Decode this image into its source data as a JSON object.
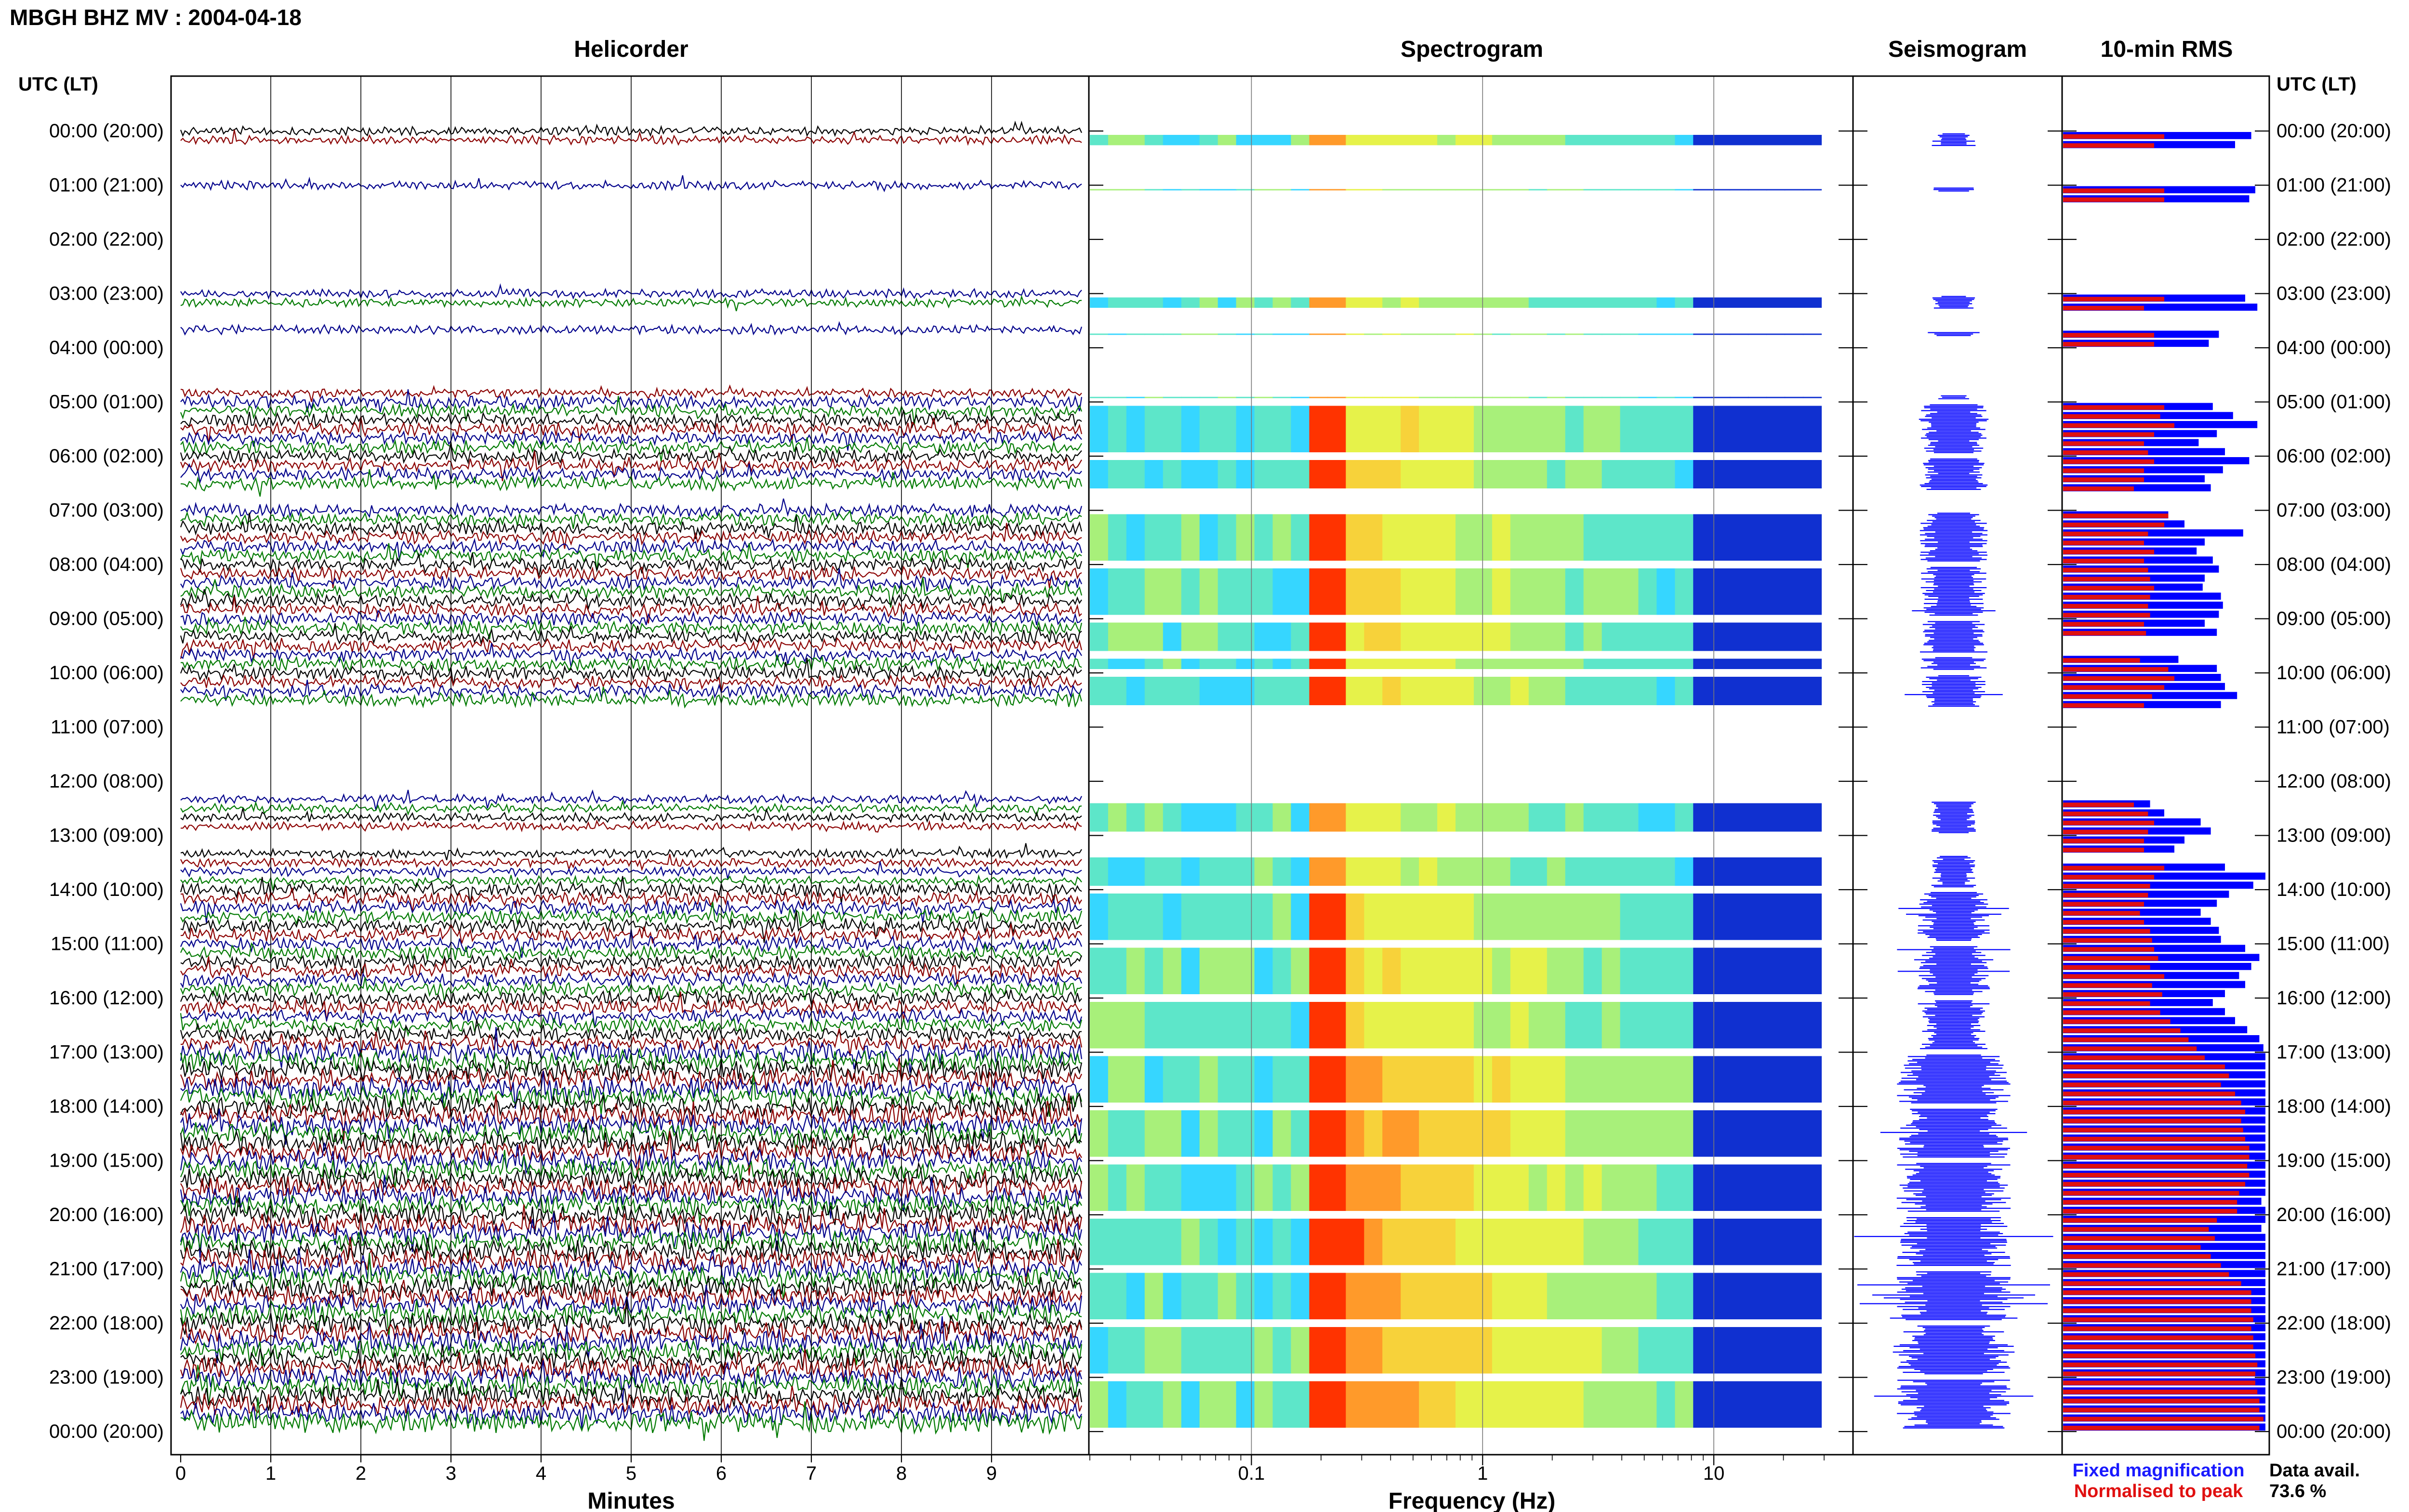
{
  "station_title": "MBGH BHZ MV : 2004-04-18",
  "panels": {
    "helicorder": "Helicorder",
    "spectrogram": "Spectrogram",
    "seismogram": "Seismogram",
    "rms": "10-min RMS"
  },
  "time_axis_title": "UTC (LT)",
  "time_labels": [
    "00:00 (20:00)",
    "01:00 (21:00)",
    "02:00 (22:00)",
    "03:00 (23:00)",
    "04:00 (00:00)",
    "05:00 (01:00)",
    "06:00 (02:00)",
    "07:00 (03:00)",
    "08:00 (04:00)",
    "09:00 (05:00)",
    "10:00 (06:00)",
    "11:00 (07:00)",
    "12:00 (08:00)",
    "13:00 (09:00)",
    "14:00 (10:00)",
    "15:00 (11:00)",
    "16:00 (12:00)",
    "17:00 (13:00)",
    "18:00 (14:00)",
    "19:00 (15:00)",
    "20:00 (16:00)",
    "21:00 (17:00)",
    "22:00 (18:00)",
    "23:00 (19:00)",
    "00:00 (20:00)"
  ],
  "minutes_ticks": [
    "0",
    "1",
    "2",
    "3",
    "4",
    "5",
    "6",
    "7",
    "8",
    "9"
  ],
  "minutes_label": "Minutes",
  "freq_ticks": [
    "0.1",
    "1",
    "10"
  ],
  "freq_label": "Frequency (Hz)",
  "legend": {
    "fixed": "Fixed magnification",
    "normalised": "Normalised to peak",
    "fixed_color": "#1a1aff",
    "normalised_color": "#e01010"
  },
  "data_avail": {
    "label": "Data avail.",
    "value": "73.6 %"
  },
  "colors": {
    "trace_cycle": [
      "#000000",
      "#8b0000",
      "#00008b",
      "#007a00"
    ],
    "seismogram": "#0000ff",
    "rms_fixed": "#0000ff",
    "rms_normalised": "#e01010",
    "spectrogram_peak": "#ff3300"
  },
  "chart_data": {
    "type": "heatmap",
    "title": "MBGH BHZ MV : 2004-04-18",
    "xlabel": "Frequency (Hz)",
    "x_scale": "log",
    "xlim": [
      0.02,
      40
    ],
    "ylabel": "UTC (LT)",
    "ylim": [
      "00:00",
      "24:00"
    ],
    "dominant_frequency_hz": 0.2,
    "data_availability_percent": 73.6,
    "hours_with_data": [
      {
        "hour": 0,
        "minutes": [
          [
            0,
            20
          ]
        ]
      },
      {
        "hour": 1,
        "minutes": [
          [
            0,
            10
          ]
        ]
      },
      {
        "hour": 3,
        "minutes": [
          [
            0,
            20
          ]
        ]
      },
      {
        "hour": 3,
        "minutes": [
          [
            40,
            50
          ]
        ]
      },
      {
        "hour": 4,
        "minutes": [
          [
            50,
            60
          ]
        ]
      },
      {
        "hour": 5,
        "minutes": [
          [
            0,
            60
          ]
        ]
      },
      {
        "hour": 6,
        "minutes": [
          [
            0,
            40
          ]
        ]
      },
      {
        "hour": 7,
        "minutes": [
          [
            0,
            60
          ]
        ]
      },
      {
        "hour": 8,
        "minutes": [
          [
            0,
            60
          ]
        ]
      },
      {
        "hour": 9,
        "minutes": [
          [
            0,
            40
          ]
        ]
      },
      {
        "hour": 9,
        "minutes": [
          [
            40,
            60
          ]
        ]
      },
      {
        "hour": 10,
        "minutes": [
          [
            0,
            40
          ]
        ]
      },
      {
        "hour": 12,
        "minutes": [
          [
            20,
            60
          ]
        ]
      },
      {
        "hour": 13,
        "minutes": [
          [
            20,
            60
          ]
        ]
      },
      {
        "hour": 14,
        "minutes": [
          [
            0,
            60
          ]
        ]
      },
      {
        "hour": 15,
        "minutes": [
          [
            0,
            60
          ]
        ]
      },
      {
        "hour": 16,
        "minutes": [
          [
            0,
            60
          ]
        ]
      },
      {
        "hour": 17,
        "minutes": [
          [
            0,
            60
          ]
        ]
      },
      {
        "hour": 18,
        "minutes": [
          [
            0,
            60
          ]
        ]
      },
      {
        "hour": 19,
        "minutes": [
          [
            0,
            60
          ]
        ]
      },
      {
        "hour": 20,
        "minutes": [
          [
            0,
            60
          ]
        ]
      },
      {
        "hour": 21,
        "minutes": [
          [
            0,
            60
          ]
        ]
      },
      {
        "hour": 22,
        "minutes": [
          [
            0,
            60
          ]
        ]
      },
      {
        "hour": 23,
        "minutes": [
          [
            0,
            60
          ]
        ]
      }
    ],
    "rms_10min": [
      {
        "slot": "00:00",
        "fixed": 0.93,
        "normalised": 0.5
      },
      {
        "slot": "00:10",
        "fixed": 0.85,
        "normalised": 0.45
      },
      {
        "slot": "01:00",
        "fixed": 0.95,
        "normalised": 0.5
      },
      {
        "slot": "01:10",
        "fixed": 0.92,
        "normalised": 0.5
      },
      {
        "slot": "03:00",
        "fixed": 0.9,
        "normalised": 0.5
      },
      {
        "slot": "03:10",
        "fixed": 0.96,
        "normalised": 0.4
      },
      {
        "slot": "03:40",
        "fixed": 0.77,
        "normalised": 0.45
      },
      {
        "slot": "03:50",
        "fixed": 0.72,
        "normalised": 0.45
      },
      {
        "slot": "05:00",
        "fixed": 0.74,
        "normalised": 0.5
      },
      {
        "slot": "05:10",
        "fixed": 0.84,
        "normalised": 0.48
      },
      {
        "slot": "05:20",
        "fixed": 0.96,
        "normalised": 0.55
      },
      {
        "slot": "05:30",
        "fixed": 0.76,
        "normalised": 0.45
      },
      {
        "slot": "05:40",
        "fixed": 0.67,
        "normalised": 0.4
      },
      {
        "slot": "05:50",
        "fixed": 0.8,
        "normalised": 0.42
      },
      {
        "slot": "06:00",
        "fixed": 0.92,
        "normalised": 0.45
      },
      {
        "slot": "06:10",
        "fixed": 0.79,
        "normalised": 0.4
      },
      {
        "slot": "06:20",
        "fixed": 0.7,
        "normalised": 0.4
      },
      {
        "slot": "06:30",
        "fixed": 0.73,
        "normalised": 0.35
      },
      {
        "slot": "07:00",
        "fixed": 0.52,
        "normalised": 0.52
      },
      {
        "slot": "07:10",
        "fixed": 0.6,
        "normalised": 0.5
      },
      {
        "slot": "07:20",
        "fixed": 0.89,
        "normalised": 0.42
      },
      {
        "slot": "07:30",
        "fixed": 0.7,
        "normalised": 0.4
      },
      {
        "slot": "07:40",
        "fixed": 0.66,
        "normalised": 0.45
      },
      {
        "slot": "07:50",
        "fixed": 0.74,
        "normalised": 0.4
      },
      {
        "slot": "08:00",
        "fixed": 0.77,
        "normalised": 0.42
      },
      {
        "slot": "08:10",
        "fixed": 0.7,
        "normalised": 0.43
      },
      {
        "slot": "08:20",
        "fixed": 0.69,
        "normalised": 0.45
      },
      {
        "slot": "08:30",
        "fixed": 0.78,
        "normalised": 0.43
      },
      {
        "slot": "08:40",
        "fixed": 0.79,
        "normalised": 0.42
      },
      {
        "slot": "08:50",
        "fixed": 0.77,
        "normalised": 0.43
      },
      {
        "slot": "09:00",
        "fixed": 0.7,
        "normalised": 0.4
      },
      {
        "slot": "09:10",
        "fixed": 0.76,
        "normalised": 0.41
      },
      {
        "slot": "09:40",
        "fixed": 0.57,
        "normalised": 0.38
      },
      {
        "slot": "09:50",
        "fixed": 0.76,
        "normalised": 0.52
      },
      {
        "slot": "10:00",
        "fixed": 0.78,
        "normalised": 0.55
      },
      {
        "slot": "10:10",
        "fixed": 0.8,
        "normalised": 0.5
      },
      {
        "slot": "10:20",
        "fixed": 0.86,
        "normalised": 0.44
      },
      {
        "slot": "10:30",
        "fixed": 0.78,
        "normalised": 0.4
      },
      {
        "slot": "12:20",
        "fixed": 0.43,
        "normalised": 0.35
      },
      {
        "slot": "12:30",
        "fixed": 0.5,
        "normalised": 0.42
      },
      {
        "slot": "12:40",
        "fixed": 0.68,
        "normalised": 0.45
      },
      {
        "slot": "12:50",
        "fixed": 0.73,
        "normalised": 0.42
      },
      {
        "slot": "13:00",
        "fixed": 0.6,
        "normalised": 0.4
      },
      {
        "slot": "13:10",
        "fixed": 0.55,
        "normalised": 0.4
      },
      {
        "slot": "13:30",
        "fixed": 0.8,
        "normalised": 0.5
      },
      {
        "slot": "13:40",
        "fixed": 1.0,
        "normalised": 0.45
      },
      {
        "slot": "13:50",
        "fixed": 0.94,
        "normalised": 0.43
      },
      {
        "slot": "14:00",
        "fixed": 0.82,
        "normalised": 0.42
      },
      {
        "slot": "14:10",
        "fixed": 0.76,
        "normalised": 0.4
      },
      {
        "slot": "14:20",
        "fixed": 0.68,
        "normalised": 0.38
      },
      {
        "slot": "14:30",
        "fixed": 0.73,
        "normalised": 0.4
      },
      {
        "slot": "14:40",
        "fixed": 0.77,
        "normalised": 0.43
      },
      {
        "slot": "14:50",
        "fixed": 0.78,
        "normalised": 0.44
      },
      {
        "slot": "15:00",
        "fixed": 0.9,
        "normalised": 0.45
      },
      {
        "slot": "15:10",
        "fixed": 0.97,
        "normalised": 0.47
      },
      {
        "slot": "15:20",
        "fixed": 0.93,
        "normalised": 0.43
      },
      {
        "slot": "15:30",
        "fixed": 0.87,
        "normalised": 0.5
      },
      {
        "slot": "15:40",
        "fixed": 0.9,
        "normalised": 0.44
      },
      {
        "slot": "15:50",
        "fixed": 0.8,
        "normalised": 0.49
      },
      {
        "slot": "16:00",
        "fixed": 0.74,
        "normalised": 0.43
      },
      {
        "slot": "16:10",
        "fixed": 0.8,
        "normalised": 0.48
      },
      {
        "slot": "16:20",
        "fixed": 0.85,
        "normalised": 0.53
      },
      {
        "slot": "16:30",
        "fixed": 0.91,
        "normalised": 0.58
      },
      {
        "slot": "16:40",
        "fixed": 0.97,
        "normalised": 0.62
      },
      {
        "slot": "16:50",
        "fixed": 0.99,
        "normalised": 0.66
      },
      {
        "slot": "17:00",
        "fixed": 1.0,
        "normalised": 0.7
      },
      {
        "slot": "17:10",
        "fixed": 1.0,
        "normalised": 0.8
      },
      {
        "slot": "17:20",
        "fixed": 1.0,
        "normalised": 0.82
      },
      {
        "slot": "17:30",
        "fixed": 1.0,
        "normalised": 0.78
      },
      {
        "slot": "17:40",
        "fixed": 1.0,
        "normalised": 0.85
      },
      {
        "slot": "17:50",
        "fixed": 1.0,
        "normalised": 0.88
      },
      {
        "slot": "18:00",
        "fixed": 1.0,
        "normalised": 0.9
      },
      {
        "slot": "18:10",
        "fixed": 1.0,
        "normalised": 0.88
      },
      {
        "slot": "18:20",
        "fixed": 1.0,
        "normalised": 0.89
      },
      {
        "slot": "18:30",
        "fixed": 1.0,
        "normalised": 0.9
      },
      {
        "slot": "18:40",
        "fixed": 1.0,
        "normalised": 0.92
      },
      {
        "slot": "18:50",
        "fixed": 1.0,
        "normalised": 0.92
      },
      {
        "slot": "19:00",
        "fixed": 1.0,
        "normalised": 0.91
      },
      {
        "slot": "19:10",
        "fixed": 1.0,
        "normalised": 0.92
      },
      {
        "slot": "19:20",
        "fixed": 1.0,
        "normalised": 0.9
      },
      {
        "slot": "19:30",
        "fixed": 1.0,
        "normalised": 0.87
      },
      {
        "slot": "19:40",
        "fixed": 0.98,
        "normalised": 0.86
      },
      {
        "slot": "19:50",
        "fixed": 1.0,
        "normalised": 0.86
      },
      {
        "slot": "20:00",
        "fixed": 1.0,
        "normalised": 0.76
      },
      {
        "slot": "20:10",
        "fixed": 0.98,
        "normalised": 0.72
      },
      {
        "slot": "20:20",
        "fixed": 1.0,
        "normalised": 0.75
      },
      {
        "slot": "20:30",
        "fixed": 1.0,
        "normalised": 0.68
      },
      {
        "slot": "20:40",
        "fixed": 1.0,
        "normalised": 0.73
      },
      {
        "slot": "20:50",
        "fixed": 1.0,
        "normalised": 0.78
      },
      {
        "slot": "21:00",
        "fixed": 1.0,
        "normalised": 0.82
      },
      {
        "slot": "21:10",
        "fixed": 1.0,
        "normalised": 0.88
      },
      {
        "slot": "21:20",
        "fixed": 1.0,
        "normalised": 0.93
      },
      {
        "slot": "21:30",
        "fixed": 1.0,
        "normalised": 0.93
      },
      {
        "slot": "21:40",
        "fixed": 1.0,
        "normalised": 0.93
      },
      {
        "slot": "21:50",
        "fixed": 1.0,
        "normalised": 0.94
      },
      {
        "slot": "22:00",
        "fixed": 1.0,
        "normalised": 0.93
      },
      {
        "slot": "22:10",
        "fixed": 1.0,
        "normalised": 0.94
      },
      {
        "slot": "22:20",
        "fixed": 1.0,
        "normalised": 0.94
      },
      {
        "slot": "22:30",
        "fixed": 1.0,
        "normalised": 0.95
      },
      {
        "slot": "22:40",
        "fixed": 1.0,
        "normalised": 0.96
      },
      {
        "slot": "22:50",
        "fixed": 1.0,
        "normalised": 0.95
      },
      {
        "slot": "23:00",
        "fixed": 1.0,
        "normalised": 0.95
      },
      {
        "slot": "23:10",
        "fixed": 1.0,
        "normalised": 0.96
      },
      {
        "slot": "23:20",
        "fixed": 1.0,
        "normalised": 0.97
      },
      {
        "slot": "23:30",
        "fixed": 1.0,
        "normalised": 0.97
      },
      {
        "slot": "23:40",
        "fixed": 1.0,
        "normalised": 0.99
      },
      {
        "slot": "23:50",
        "fixed": 1.0,
        "normalised": 0.97
      }
    ]
  }
}
